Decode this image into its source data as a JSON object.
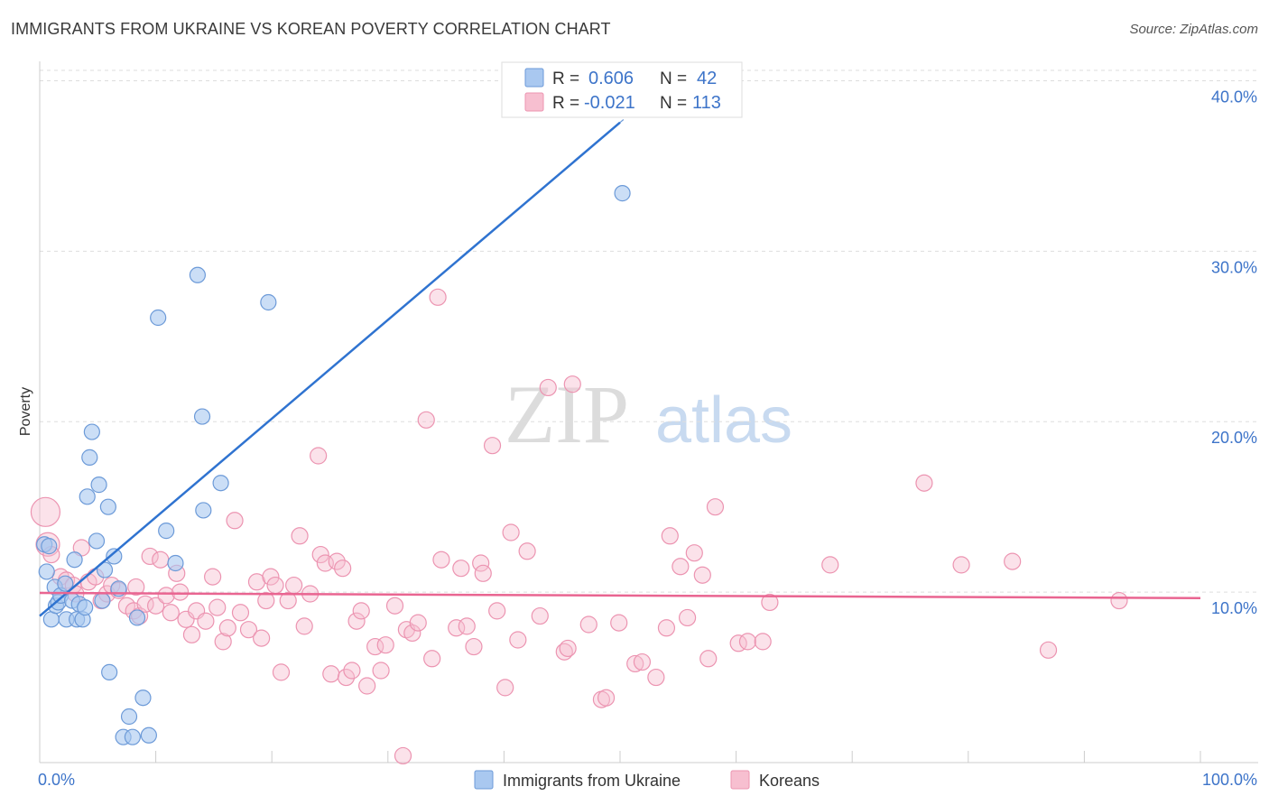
{
  "header": {
    "title": "IMMIGRANTS FROM UKRAINE VS KOREAN POVERTY CORRELATION CHART",
    "source": "Source: ZipAtlas.com"
  },
  "watermark": {
    "zip": "ZIP",
    "atlas": "atlas"
  },
  "colors": {
    "ukraine_fill": "#a9c8f0",
    "ukraine_stroke": "#6c9ad8",
    "ukraine_line": "#2f73d0",
    "korean_fill": "#f7bfd0",
    "korean_stroke": "#ec94b1",
    "korean_line": "#e96591",
    "axis_text": "#3d74c9",
    "grid": "#dddddd"
  },
  "legend": {
    "rows": [
      {
        "r_label": "R =",
        "r_value": "0.606",
        "n_label": "N =",
        "n_value": "42"
      },
      {
        "r_label": "R =",
        "r_value": "-0.021",
        "n_label": "N =",
        "n_value": "113"
      }
    ]
  },
  "chart_data": {
    "type": "scatter",
    "title": "IMMIGRANTS FROM UKRAINE VS KOREAN POVERTY CORRELATION CHART",
    "xlabel": "",
    "ylabel": "Poverty",
    "xlim": [
      0,
      100
    ],
    "ylim": [
      0,
      40.5
    ],
    "x_tick_labels": [
      "0.0%",
      "100.0%"
    ],
    "y_ticks": [
      10,
      20,
      30,
      40
    ],
    "y_tick_labels": [
      "10.0%",
      "20.0%",
      "30.0%",
      "40.0%"
    ],
    "grid": true,
    "legend_position": "bottom-center",
    "series": [
      {
        "name": "Immigrants from Ukraine",
        "color": "#a9c8f0",
        "trend": {
          "x": [
            0,
            100
          ],
          "y": [
            8.6,
            66.5
          ],
          "solid_until_x": 50
        },
        "points": [
          [
            0.4,
            12.8
          ],
          [
            0.6,
            11.2
          ],
          [
            0.8,
            12.7
          ],
          [
            1.0,
            8.4
          ],
          [
            1.3,
            10.3
          ],
          [
            1.4,
            9.2
          ],
          [
            1.6,
            9.4
          ],
          [
            1.8,
            9.8
          ],
          [
            2.2,
            10.5
          ],
          [
            2.3,
            8.4
          ],
          [
            2.8,
            9.5
          ],
          [
            3.0,
            11.9
          ],
          [
            3.2,
            8.4
          ],
          [
            3.4,
            9.3
          ],
          [
            3.7,
            8.4
          ],
          [
            3.9,
            9.1
          ],
          [
            4.1,
            15.6
          ],
          [
            4.3,
            17.9
          ],
          [
            4.5,
            19.4
          ],
          [
            4.9,
            13.0
          ],
          [
            5.1,
            16.3
          ],
          [
            5.4,
            9.5
          ],
          [
            5.6,
            11.3
          ],
          [
            5.9,
            15.0
          ],
          [
            6.0,
            5.3
          ],
          [
            6.4,
            12.1
          ],
          [
            6.8,
            10.2
          ],
          [
            7.2,
            1.5
          ],
          [
            7.7,
            2.7
          ],
          [
            8.0,
            1.5
          ],
          [
            8.4,
            8.5
          ],
          [
            8.9,
            3.8
          ],
          [
            9.4,
            1.6
          ],
          [
            10.2,
            26.1
          ],
          [
            10.9,
            13.6
          ],
          [
            11.7,
            11.7
          ],
          [
            13.6,
            28.6
          ],
          [
            14.0,
            20.3
          ],
          [
            14.1,
            14.8
          ],
          [
            15.6,
            16.4
          ],
          [
            19.7,
            27.0
          ],
          [
            50.2,
            33.4
          ]
        ]
      },
      {
        "name": "Koreans",
        "color": "#f7bfd0",
        "trend": {
          "x": [
            0,
            100
          ],
          "y": [
            9.95,
            9.65
          ]
        },
        "points": [
          [
            0.5,
            14.7
          ],
          [
            0.7,
            12.8
          ],
          [
            1.0,
            12.2
          ],
          [
            1.8,
            10.9
          ],
          [
            2.3,
            10.7
          ],
          [
            2.9,
            10.4
          ],
          [
            3.1,
            9.9
          ],
          [
            3.6,
            12.6
          ],
          [
            4.2,
            10.6
          ],
          [
            4.8,
            10.9
          ],
          [
            5.3,
            9.5
          ],
          [
            5.8,
            9.9
          ],
          [
            6.2,
            10.4
          ],
          [
            6.8,
            10.1
          ],
          [
            7.5,
            9.2
          ],
          [
            8.1,
            8.9
          ],
          [
            8.3,
            10.3
          ],
          [
            8.6,
            8.6
          ],
          [
            9.1,
            9.3
          ],
          [
            9.5,
            12.1
          ],
          [
            10.0,
            9.2
          ],
          [
            10.4,
            11.9
          ],
          [
            10.9,
            9.8
          ],
          [
            11.3,
            8.8
          ],
          [
            11.8,
            11.1
          ],
          [
            12.1,
            10.0
          ],
          [
            12.6,
            8.4
          ],
          [
            13.1,
            7.5
          ],
          [
            13.5,
            8.9
          ],
          [
            14.3,
            8.3
          ],
          [
            14.9,
            10.9
          ],
          [
            15.3,
            9.1
          ],
          [
            15.8,
            7.1
          ],
          [
            16.2,
            7.9
          ],
          [
            16.8,
            14.2
          ],
          [
            17.3,
            8.8
          ],
          [
            18.0,
            7.8
          ],
          [
            18.7,
            10.6
          ],
          [
            19.1,
            7.3
          ],
          [
            19.5,
            9.5
          ],
          [
            19.9,
            10.9
          ],
          [
            20.3,
            10.4
          ],
          [
            20.8,
            5.3
          ],
          [
            21.4,
            9.5
          ],
          [
            21.9,
            10.4
          ],
          [
            22.4,
            13.3
          ],
          [
            22.8,
            8.0
          ],
          [
            23.3,
            9.9
          ],
          [
            24.0,
            18.0
          ],
          [
            24.2,
            12.2
          ],
          [
            24.6,
            11.7
          ],
          [
            25.1,
            5.2
          ],
          [
            25.6,
            11.8
          ],
          [
            26.1,
            11.4
          ],
          [
            26.4,
            5.0
          ],
          [
            26.9,
            5.4
          ],
          [
            27.3,
            8.3
          ],
          [
            27.7,
            8.9
          ],
          [
            28.2,
            4.5
          ],
          [
            28.9,
            6.8
          ],
          [
            29.4,
            5.4
          ],
          [
            29.8,
            6.9
          ],
          [
            30.6,
            9.2
          ],
          [
            31.3,
            0.4
          ],
          [
            31.6,
            7.8
          ],
          [
            32.1,
            7.6
          ],
          [
            32.6,
            8.2
          ],
          [
            33.3,
            20.1
          ],
          [
            33.8,
            6.1
          ],
          [
            34.3,
            27.3
          ],
          [
            34.6,
            11.9
          ],
          [
            35.9,
            7.9
          ],
          [
            36.3,
            11.4
          ],
          [
            36.8,
            8.0
          ],
          [
            37.4,
            6.8
          ],
          [
            38.0,
            11.7
          ],
          [
            38.2,
            11.1
          ],
          [
            39.0,
            18.6
          ],
          [
            39.4,
            8.9
          ],
          [
            40.1,
            4.4
          ],
          [
            40.6,
            13.5
          ],
          [
            41.2,
            7.2
          ],
          [
            42.0,
            12.4
          ],
          [
            43.1,
            8.6
          ],
          [
            43.8,
            22.0
          ],
          [
            45.2,
            6.5
          ],
          [
            45.5,
            6.7
          ],
          [
            45.9,
            22.2
          ],
          [
            47.3,
            8.1
          ],
          [
            48.4,
            3.7
          ],
          [
            48.8,
            3.8
          ],
          [
            49.9,
            8.2
          ],
          [
            51.3,
            5.8
          ],
          [
            51.9,
            5.9
          ],
          [
            53.1,
            5.0
          ],
          [
            54.0,
            7.9
          ],
          [
            54.3,
            13.3
          ],
          [
            55.2,
            11.5
          ],
          [
            55.8,
            8.5
          ],
          [
            56.4,
            12.3
          ],
          [
            57.1,
            11.0
          ],
          [
            57.6,
            6.1
          ],
          [
            58.2,
            15.0
          ],
          [
            60.2,
            7.0
          ],
          [
            61.0,
            7.1
          ],
          [
            62.3,
            7.1
          ],
          [
            62.9,
            9.4
          ],
          [
            68.1,
            11.6
          ],
          [
            76.2,
            16.4
          ],
          [
            79.4,
            11.6
          ],
          [
            83.8,
            11.8
          ],
          [
            86.9,
            6.6
          ],
          [
            93.0,
            9.5
          ]
        ]
      }
    ]
  }
}
